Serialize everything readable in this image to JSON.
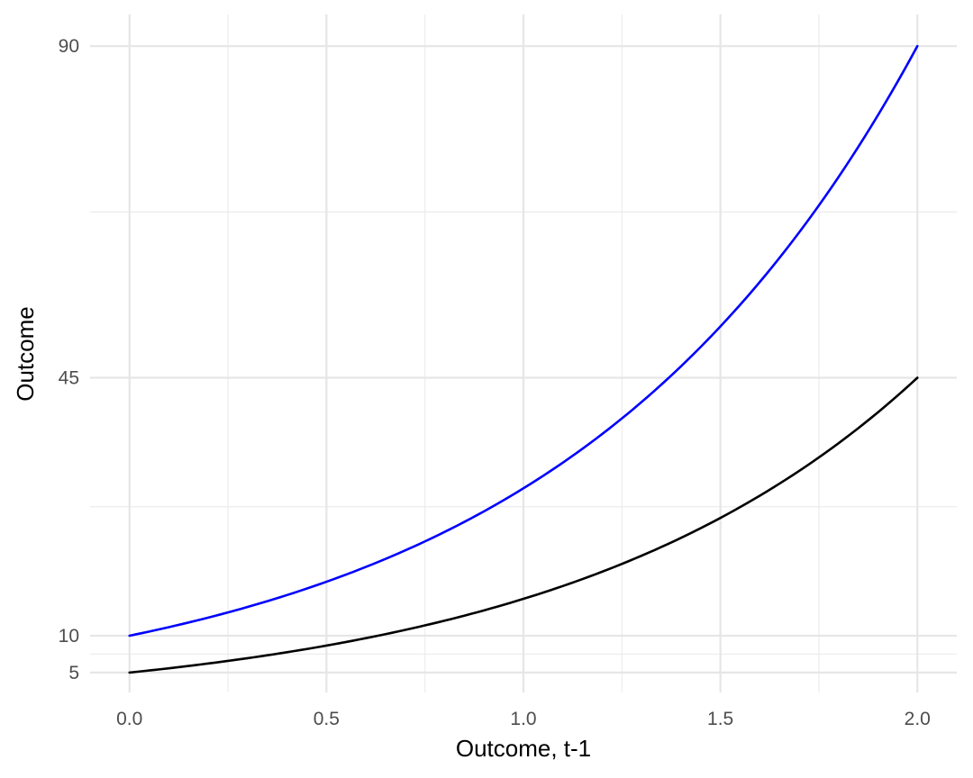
{
  "chart_data": {
    "type": "line",
    "title": "",
    "xlabel": "Outcome, t-1",
    "ylabel": "Outcome",
    "xlim": [
      -0.1,
      2.1
    ],
    "ylim": [
      2.3,
      94.3
    ],
    "x_ticks": [
      0.0,
      0.5,
      1.0,
      1.5,
      2.0
    ],
    "x_tick_labels": [
      "0.0",
      "0.5",
      "1.0",
      "1.5",
      "2.0"
    ],
    "x_minor_ticks": [
      0.25,
      0.75,
      1.25,
      1.75
    ],
    "y_ticks": [
      5,
      10,
      45,
      90
    ],
    "y_tick_labels": [
      "5",
      "10",
      "45",
      "90"
    ],
    "y_minor_ticks": [
      7.5,
      27.5,
      67.5
    ],
    "grid": true,
    "legend": "none",
    "series": [
      {
        "color": "#0000ff",
        "x": [
          0.0,
          0.1,
          0.2,
          0.3,
          0.4,
          0.5,
          0.6,
          0.7,
          0.8,
          0.9,
          1.0,
          1.1,
          1.2,
          1.3,
          1.4,
          1.5,
          1.6,
          1.7,
          1.8,
          1.9,
          2.0
        ],
        "y": [
          10.0,
          11.2,
          12.5,
          14.0,
          15.8,
          17.7,
          19.9,
          22.3,
          25.0,
          28.1,
          31.6,
          35.4,
          39.8,
          44.6,
          50.1,
          56.2,
          63.1,
          70.8,
          79.4,
          89.1,
          90.0
        ]
      },
      {
        "color": "#000000",
        "x": [
          0.0,
          0.1,
          0.2,
          0.3,
          0.4,
          0.5,
          0.6,
          0.7,
          0.8,
          0.9,
          1.0,
          1.1,
          1.2,
          1.3,
          1.4,
          1.5,
          1.6,
          1.7,
          1.8,
          1.9,
          2.0
        ],
        "y": [
          5.0,
          5.6,
          6.2,
          6.9,
          7.7,
          8.7,
          9.7,
          10.8,
          12.1,
          13.5,
          15.0,
          16.8,
          18.7,
          20.9,
          23.4,
          26.1,
          29.1,
          32.5,
          36.3,
          40.5,
          45.0
        ]
      }
    ]
  }
}
